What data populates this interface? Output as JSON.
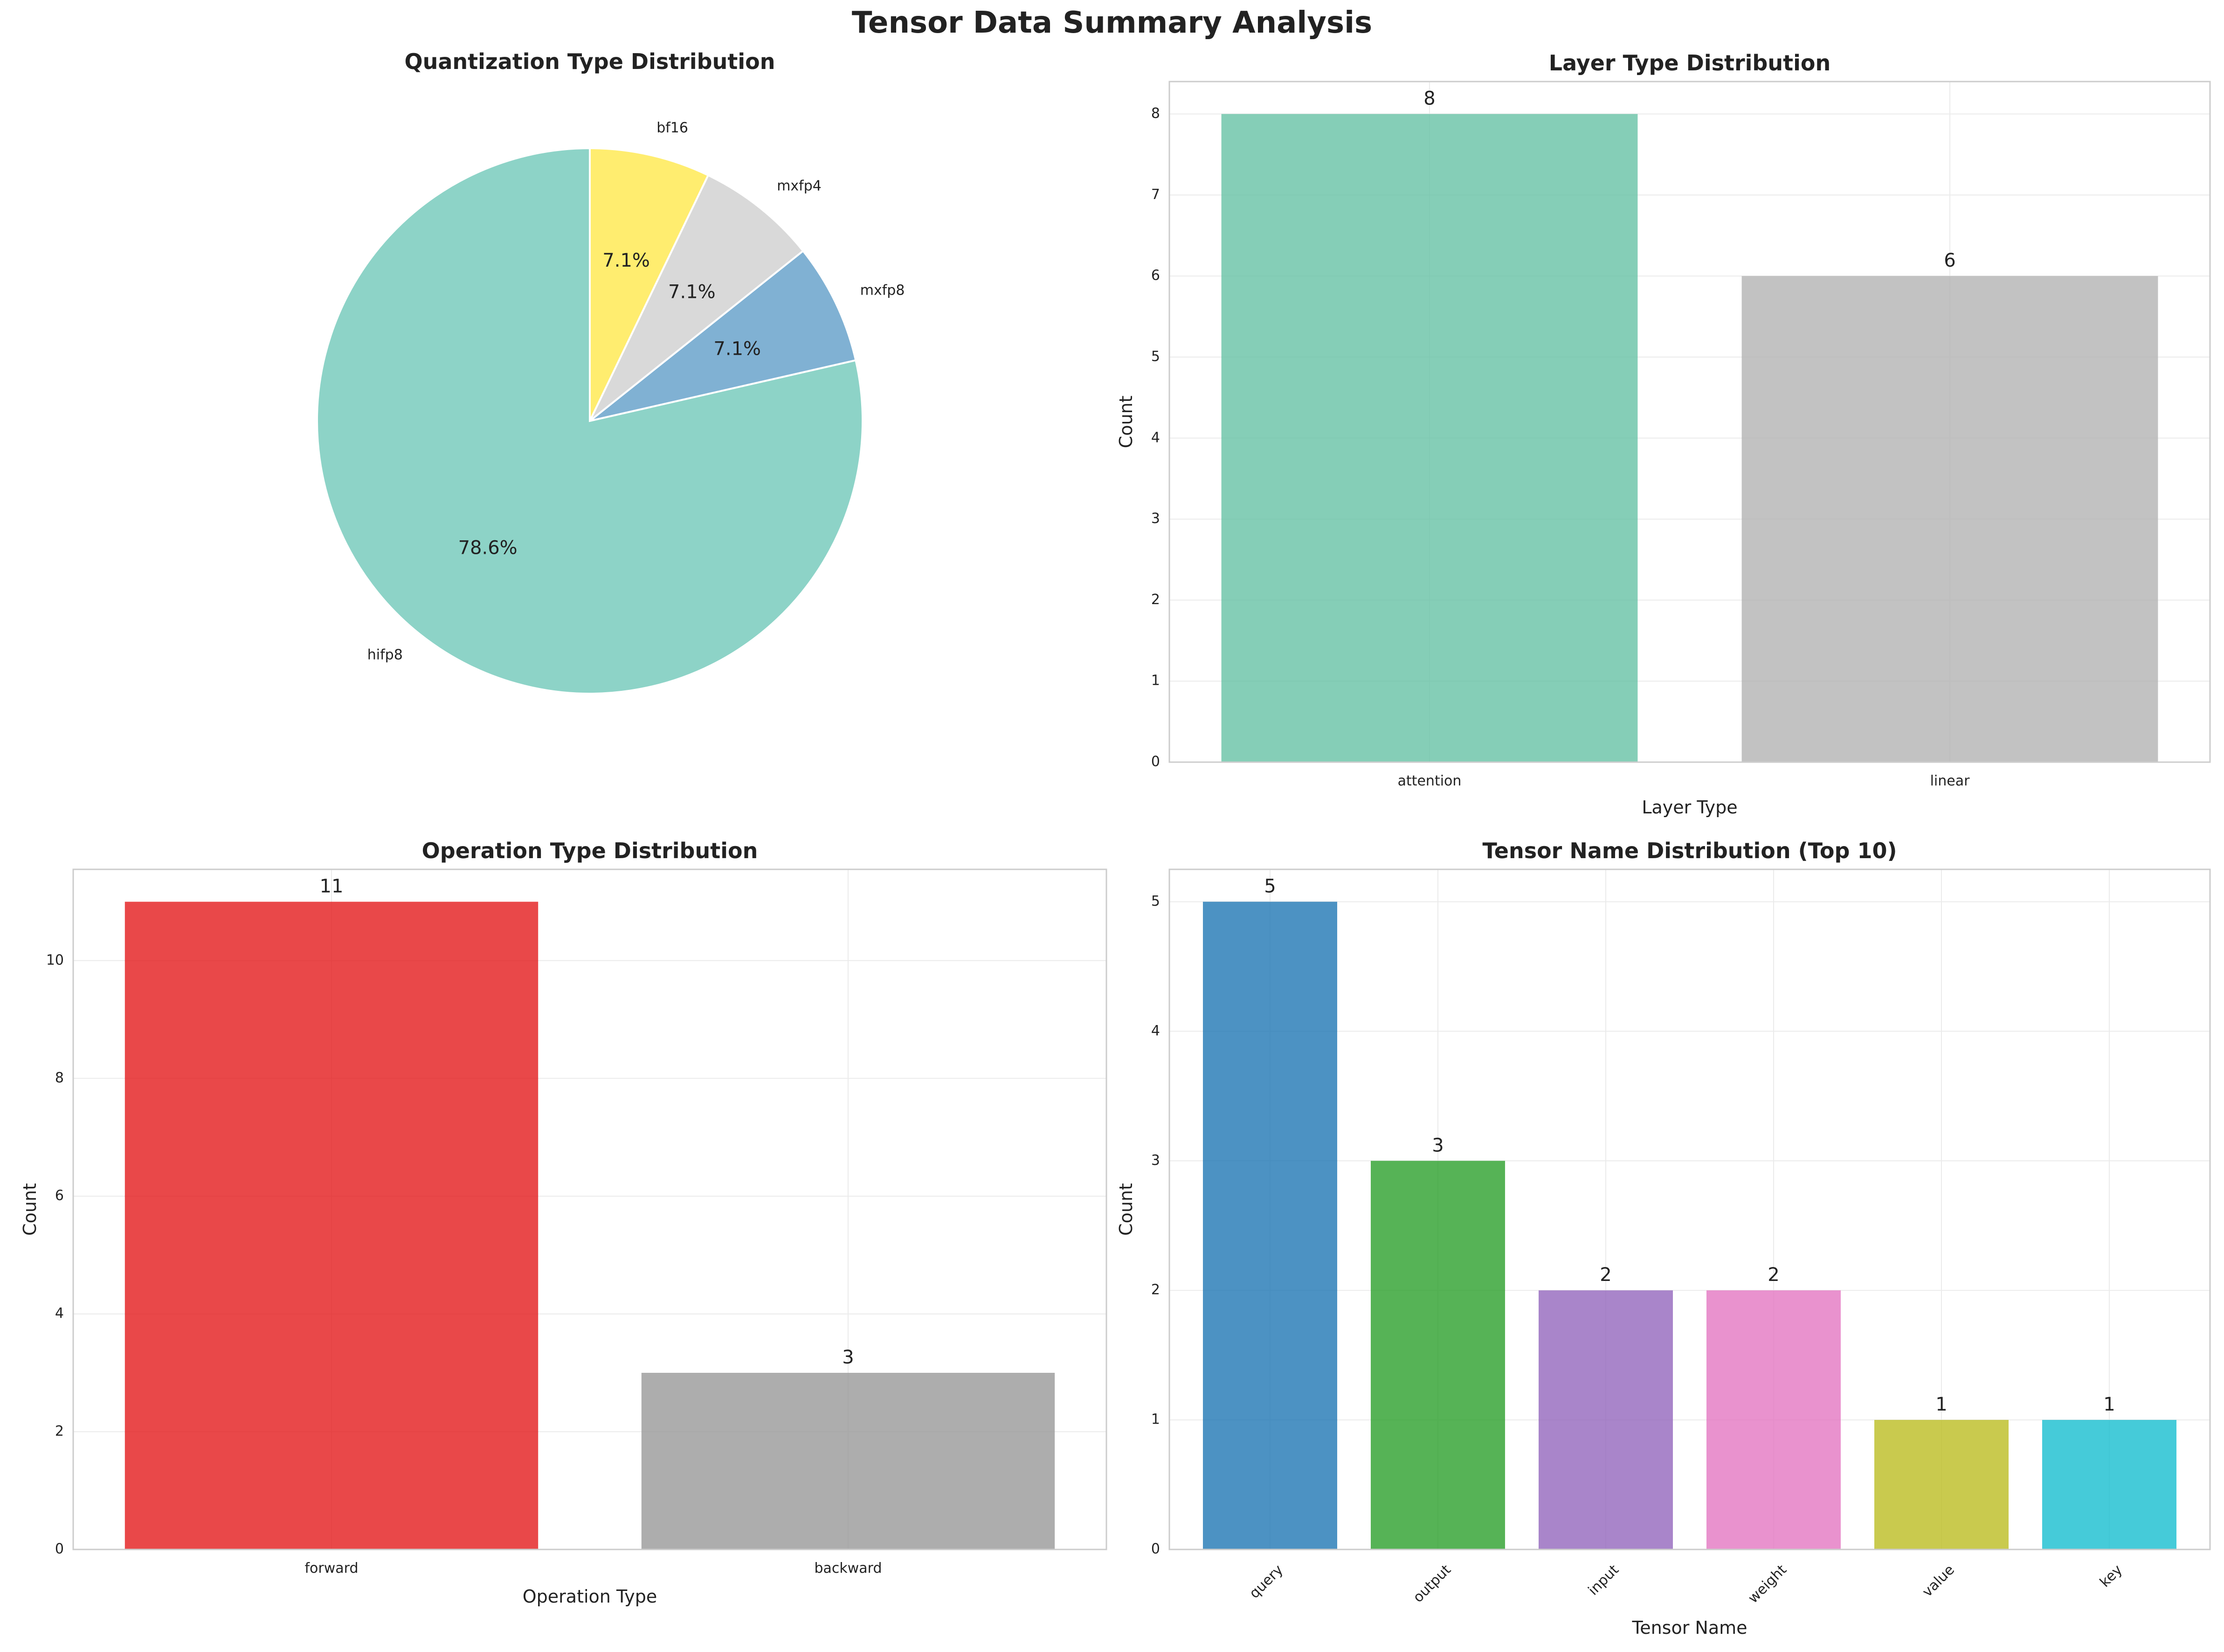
{
  "suptitle": "Tensor Data Summary Analysis",
  "chart_data": [
    {
      "type": "pie",
      "title": "Quantization Type Distribution",
      "labels": [
        "hifp8",
        "mxfp8",
        "mxfp4",
        "bf16"
      ],
      "values": [
        11,
        1,
        1,
        1
      ],
      "percent_labels": [
        "78.6%",
        "7.1%",
        "7.1%",
        "7.1%"
      ],
      "colors": [
        "#8dd3c7",
        "#80b1d3",
        "#d9d9d9",
        "#ffed6f"
      ],
      "start_angle_deg": 90,
      "direction": "counterclockwise"
    },
    {
      "type": "bar",
      "title": "Layer Type Distribution",
      "xlabel": "Layer Type",
      "ylabel": "Count",
      "categories": [
        "attention",
        "linear"
      ],
      "values": [
        8,
        6
      ],
      "value_labels": [
        "8",
        "6"
      ],
      "colors": [
        "#66c2a5",
        "#b3b3b3"
      ],
      "ylim": [
        0,
        8.4
      ],
      "yticks": [
        0,
        1,
        2,
        3,
        4,
        5,
        6,
        7,
        8
      ],
      "grid": true
    },
    {
      "type": "bar",
      "title": "Operation Type Distribution",
      "xlabel": "Operation Type",
      "ylabel": "Count",
      "categories": [
        "forward",
        "backward"
      ],
      "values": [
        11,
        3
      ],
      "value_labels": [
        "11",
        "3"
      ],
      "colors": [
        "#e41a1c",
        "#999999"
      ],
      "ylim": [
        0,
        11.55
      ],
      "yticks": [
        0,
        2,
        4,
        6,
        8,
        10
      ],
      "grid": true
    },
    {
      "type": "bar",
      "title": "Tensor Name Distribution (Top 10)",
      "xlabel": "Tensor Name",
      "ylabel": "Count",
      "categories": [
        "query",
        "output",
        "input",
        "weight",
        "value",
        "key"
      ],
      "values": [
        5,
        3,
        2,
        2,
        1,
        1
      ],
      "value_labels": [
        "5",
        "3",
        "2",
        "2",
        "1",
        "1"
      ],
      "colors": [
        "#1f77b4",
        "#2ca02c",
        "#9467bd",
        "#e377c2",
        "#bcbd22",
        "#17becf"
      ],
      "ylim": [
        0,
        5.25
      ],
      "yticks": [
        0,
        1,
        2,
        3,
        4,
        5
      ],
      "xtick_rotation_deg": 45,
      "grid": true
    }
  ]
}
